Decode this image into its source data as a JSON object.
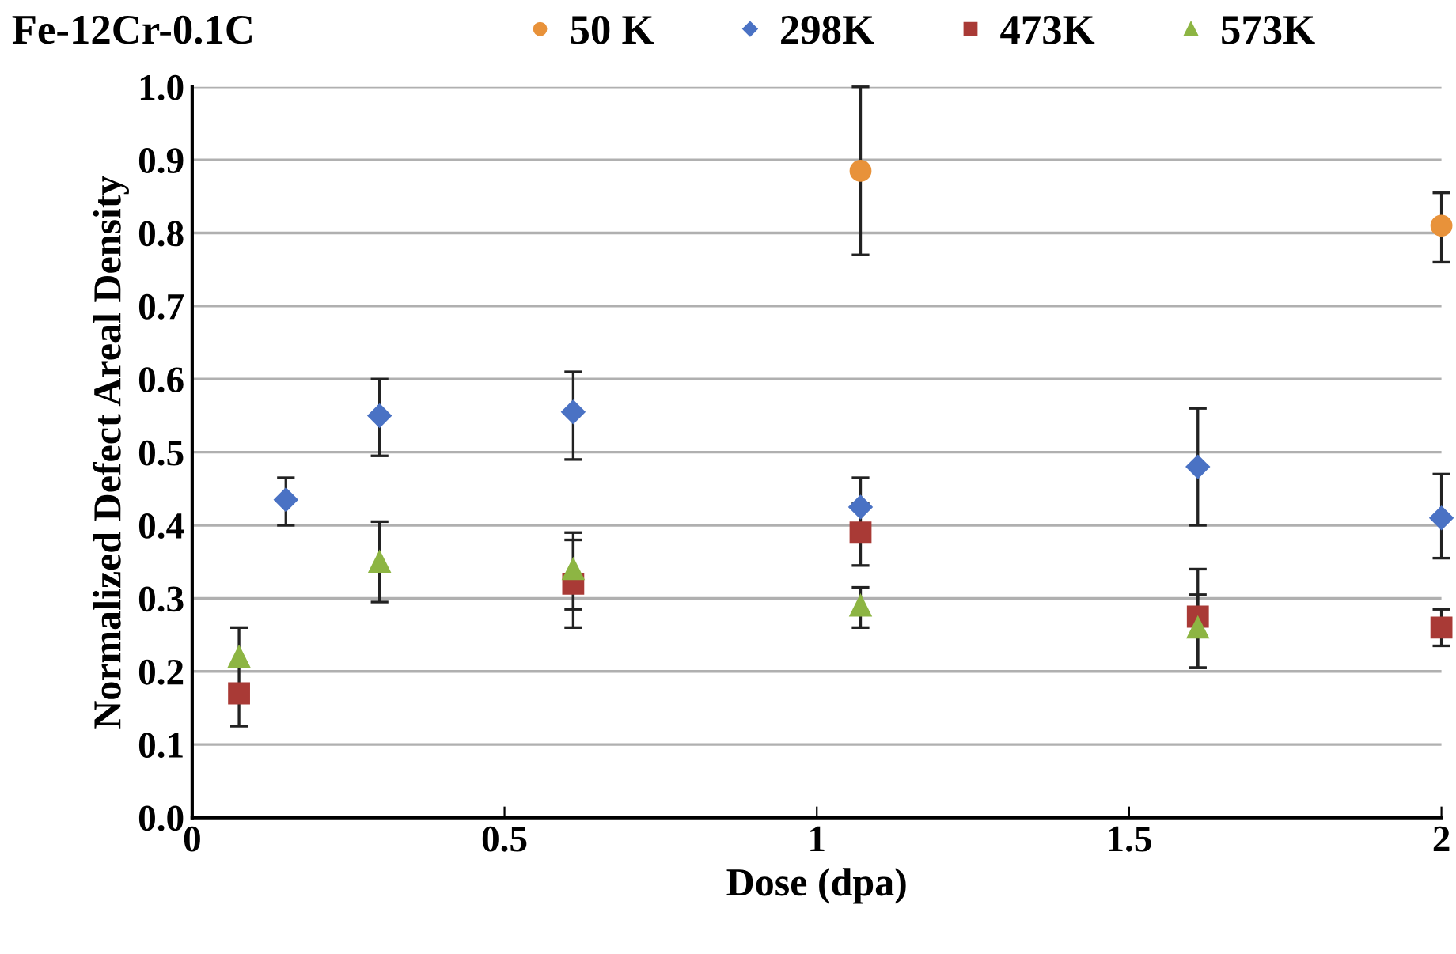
{
  "chart_data": {
    "type": "scatter",
    "title": "Fe-12Cr-0.1C",
    "xlabel": "Dose (dpa)",
    "ylabel": "Normalized Defect Areal Density",
    "xlim": [
      0,
      2
    ],
    "xticks": [
      0,
      0.5,
      1,
      1.5,
      2
    ],
    "ylim": [
      0,
      1.0
    ],
    "yticks": [
      {
        "value": 0,
        "label": "0.0"
      },
      {
        "value": 0.1,
        "label": "0.1"
      },
      {
        "value": 0.2,
        "label": "0.2"
      },
      {
        "value": 0.3,
        "label": "0.3"
      },
      {
        "value": 0.4,
        "label": "0.4"
      },
      {
        "value": 0.5,
        "label": "0.5"
      },
      {
        "value": 0.6,
        "label": "0.6"
      },
      {
        "value": 0.7,
        "label": "0.7"
      },
      {
        "value": 0.8,
        "label": "0.8"
      },
      {
        "value": 0.9,
        "label": "0.9"
      },
      {
        "value": 1.0,
        "label": "1.0"
      }
    ],
    "grid": "y",
    "legend": "top",
    "series": [
      {
        "name": "50 K",
        "color": "#e8923a",
        "marker": "circle",
        "x": [
          1.07,
          2.0
        ],
        "values": [
          0.885,
          0.81
        ],
        "errors": [
          [
            0.77,
            1.0
          ],
          [
            0.76,
            0.855
          ]
        ]
      },
      {
        "name": "298K",
        "color": "#4a72c4",
        "marker": "diamond",
        "x": [
          0.15,
          0.3,
          0.61,
          1.07,
          1.61,
          2.0
        ],
        "values": [
          0.435,
          0.55,
          0.555,
          0.425,
          0.48,
          0.41
        ],
        "errors": [
          [
            0.4,
            0.465
          ],
          [
            0.495,
            0.6
          ],
          [
            0.49,
            0.61
          ],
          [
            0.425,
            0.465
          ],
          [
            0.4,
            0.56
          ],
          [
            0.355,
            0.47
          ]
        ]
      },
      {
        "name": "473K",
        "color": "#a93a36",
        "marker": "square",
        "x": [
          0.075,
          0.61,
          1.07,
          1.61,
          2.0
        ],
        "values": [
          0.17,
          0.32,
          0.39,
          0.275,
          0.26
        ],
        "errors": [
          [
            0.125,
            0.17
          ],
          [
            0.285,
            0.38
          ],
          [
            0.345,
            0.43
          ],
          [
            0.205,
            0.305
          ],
          [
            0.235,
            0.285
          ]
        ]
      },
      {
        "name": "573K",
        "color": "#8db543",
        "marker": "triangle",
        "x": [
          0.075,
          0.3,
          0.61,
          1.07,
          1.61
        ],
        "values": [
          0.22,
          0.35,
          0.34,
          0.29,
          0.26
        ],
        "errors": [
          [
            0.18,
            0.26
          ],
          [
            0.295,
            0.405
          ],
          [
            0.26,
            0.39
          ],
          [
            0.26,
            0.315
          ],
          [
            0.205,
            0.34
          ]
        ]
      }
    ]
  }
}
